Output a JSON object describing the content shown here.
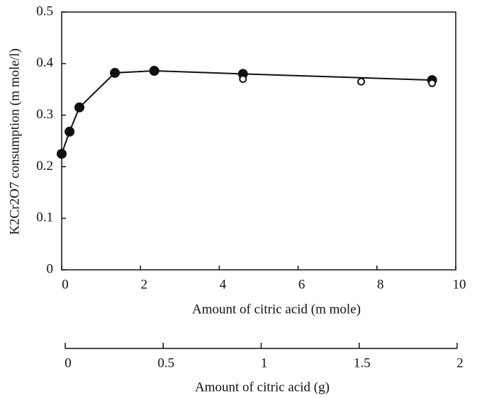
{
  "chart_data": {
    "type": "line",
    "xlabel": "Amount of citric acid (m mole)",
    "ylabel": "K2Cr2O7 consumption (m mole/l)",
    "x2label": "Amount of citric acid (g)",
    "xlim": [
      0,
      10
    ],
    "xticks": [
      0,
      2,
      4,
      6,
      8,
      10
    ],
    "ylim": [
      0,
      0.5
    ],
    "yticks": [
      0,
      0.1,
      0.2,
      0.3,
      0.4,
      0.5
    ],
    "x2lim": [
      0,
      2
    ],
    "x2ticks": [
      0,
      0.5,
      1,
      1.5,
      2
    ],
    "series": [
      {
        "color": "#111111",
        "marker": "filled",
        "line": true,
        "x": [
          0,
          0.2,
          0.45,
          1.35,
          2.35,
          4.6,
          9.4
        ],
        "values": [
          0.225,
          0.268,
          0.315,
          0.382,
          0.386,
          0.38,
          0.368
        ]
      },
      {
        "color": "#111111",
        "marker": "open",
        "line": false,
        "x": [
          4.6,
          7.6,
          9.4
        ],
        "values": [
          0.37,
          0.365,
          0.362
        ]
      }
    ]
  }
}
